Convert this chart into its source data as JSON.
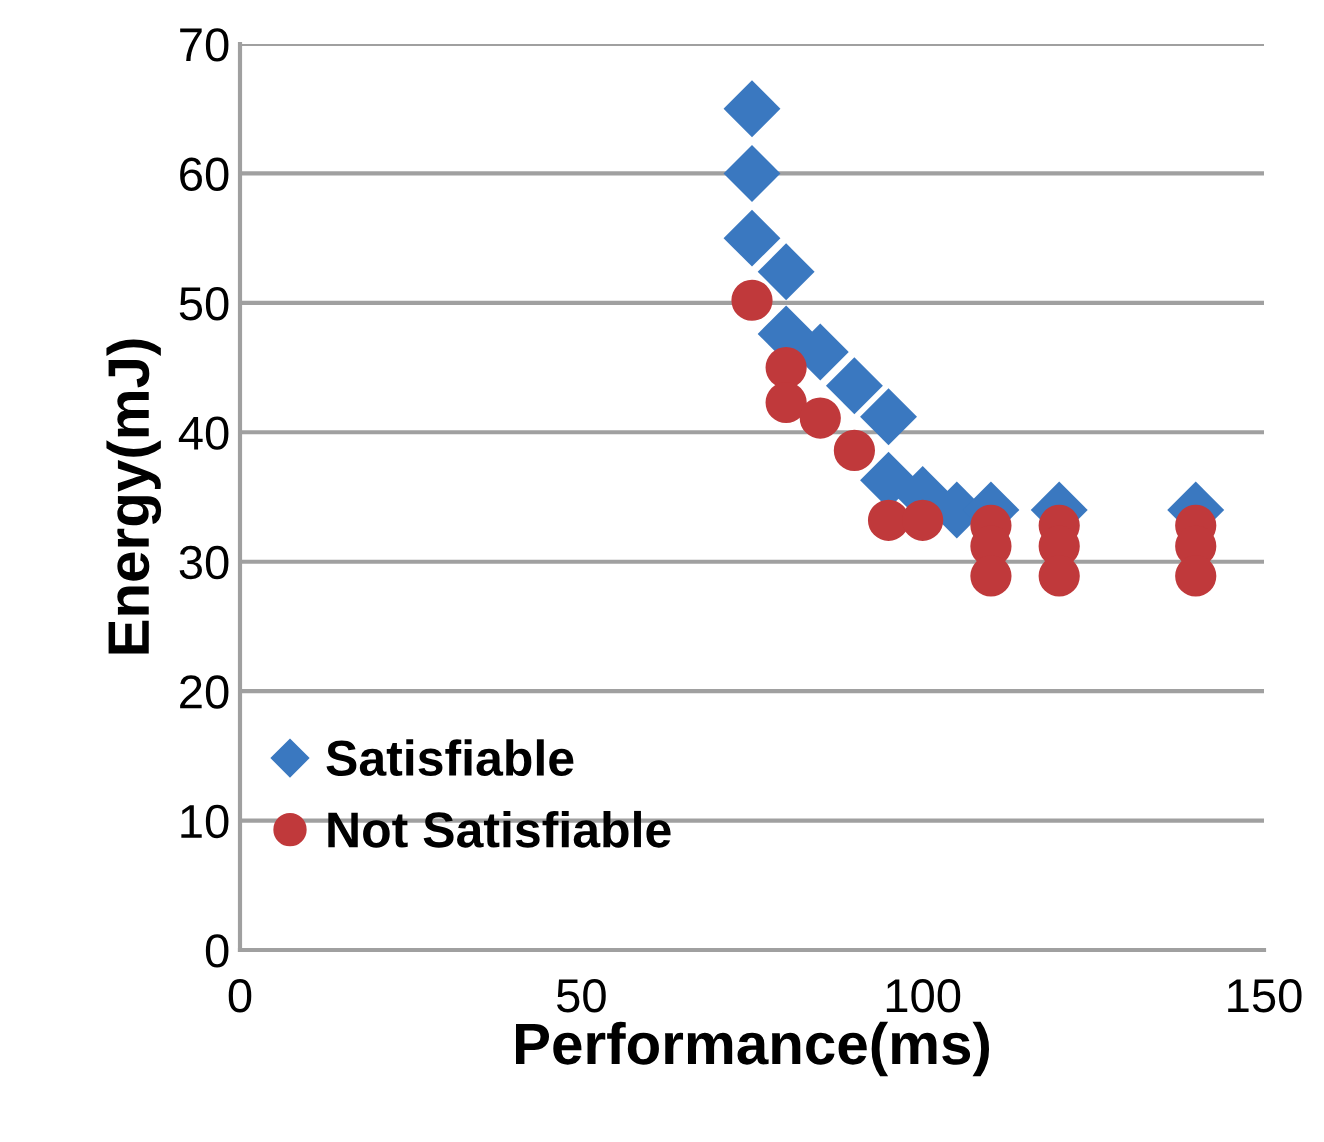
{
  "chart_data": {
    "type": "scatter",
    "xlabel": "Performance(ms)",
    "ylabel": "Energy(mJ)",
    "xlim": [
      0,
      150
    ],
    "ylim": [
      0,
      70
    ],
    "xticks": [
      0,
      50,
      100,
      150
    ],
    "yticks": [
      0,
      10,
      20,
      30,
      40,
      50,
      60,
      70
    ],
    "grid": "y",
    "legend": "left",
    "series": [
      {
        "name": "Satisfiable",
        "color": "#3a78c0",
        "marker": "diamond",
        "x": [
          75,
          75,
          75,
          80,
          80,
          85,
          90,
          95,
          95,
          100,
          105,
          110,
          120,
          140
        ],
        "values": [
          65,
          60,
          55,
          52.4,
          47.6,
          46.2,
          43.6,
          41.2,
          36.3,
          35.2,
          34,
          34,
          34,
          34
        ]
      },
      {
        "name": "Not Satisfiable",
        "color": "#c0393b",
        "marker": "circle",
        "x": [
          75,
          80,
          80,
          85,
          90,
          95,
          100,
          110,
          110,
          110,
          120,
          120,
          120,
          140,
          140,
          140
        ],
        "values": [
          50.2,
          45,
          42.3,
          41.1,
          38.6,
          33.2,
          33.2,
          32.8,
          31.2,
          28.9,
          32.8,
          31.2,
          28.9,
          32.8,
          31.2,
          28.9
        ]
      }
    ]
  }
}
